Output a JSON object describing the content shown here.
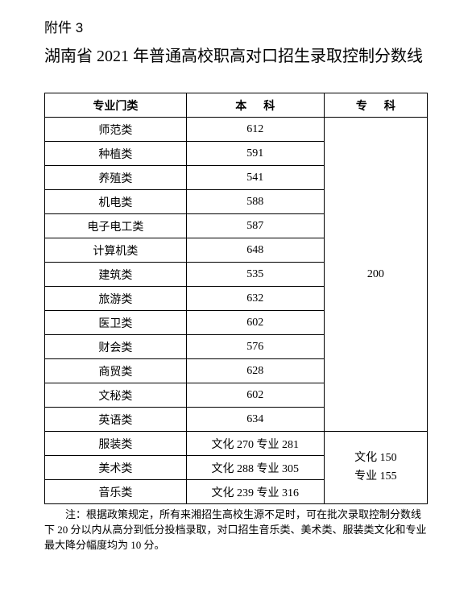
{
  "attach_label": "附件 3",
  "title": "湖南省 2021 年普通高校职高对口招生录取控制分数线",
  "header": {
    "col1": "专业门类",
    "col2_a": "本",
    "col2_b": "科",
    "col3_a": "专",
    "col3_b": "科"
  },
  "group1_merge_value": "200",
  "group1": [
    {
      "major": "师范类",
      "score": "612"
    },
    {
      "major": "种植类",
      "score": "591"
    },
    {
      "major": "养殖类",
      "score": "541"
    },
    {
      "major": "机电类",
      "score": "588"
    },
    {
      "major": "电子电工类",
      "score": "587"
    },
    {
      "major": "计算机类",
      "score": "648"
    },
    {
      "major": "建筑类",
      "score": "535"
    },
    {
      "major": "旅游类",
      "score": "632"
    },
    {
      "major": "医卫类",
      "score": "602"
    },
    {
      "major": "财会类",
      "score": "576"
    },
    {
      "major": "商贸类",
      "score": "628"
    },
    {
      "major": "文秘类",
      "score": "602"
    },
    {
      "major": "英语类",
      "score": "634"
    }
  ],
  "group2_merge_line1": "文化 150",
  "group2_merge_line2": "专业 155",
  "group2": [
    {
      "major": "服装类",
      "score": "文化 270  专业 281"
    },
    {
      "major": "美术类",
      "score": "文化 288   专业 305"
    },
    {
      "major": "音乐类",
      "score": "文化 239   专业 316"
    }
  ],
  "note": "注：根据政策规定，所有来湘招生高校生源不足时，可在批次录取控制分数线下 20 分以内从高分到低分投档录取，对口招生音乐类、美术类、服装类文化和专业最大降分幅度均为 10 分。"
}
